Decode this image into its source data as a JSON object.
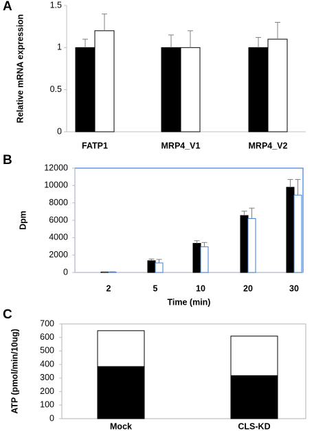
{
  "chart_data": [
    {
      "panel": "A",
      "type": "bar",
      "ylabel": "Relative mRNA expression",
      "xlabel": "",
      "ylim": [
        0,
        1.5
      ],
      "yticks": [
        "0",
        "0.5",
        "1",
        "1.5"
      ],
      "categories": [
        "FATP1",
        "MRP4_V1",
        "MRP4_V2"
      ],
      "series": [
        {
          "color": "#000000",
          "values": [
            1.0,
            1.0,
            1.0
          ],
          "errors": [
            0.1,
            0.15,
            0.12
          ]
        },
        {
          "color": "#ffffff",
          "values": [
            1.2,
            1.0,
            1.1
          ],
          "errors": [
            0.2,
            0.2,
            0.2
          ]
        }
      ],
      "grid": false,
      "legend": "none"
    },
    {
      "panel": "B",
      "type": "bar",
      "ylabel": "Dpm",
      "xlabel": "Time (min)",
      "ylim": [
        0,
        12000
      ],
      "yticks": [
        "0",
        "2000",
        "4000",
        "6000",
        "8000",
        "10000",
        "12000"
      ],
      "categories": [
        "2",
        "5",
        "10",
        "20",
        "30"
      ],
      "series": [
        {
          "color": "#000000",
          "values": [
            50,
            1350,
            3350,
            6550,
            9800
          ],
          "errors": [
            30,
            200,
            300,
            500,
            900
          ]
        },
        {
          "color": "#ffffff",
          "edge": "#3a7fd5",
          "values": [
            50,
            1100,
            2950,
            6200,
            8900
          ],
          "errors": [
            30,
            400,
            500,
            1200,
            1800
          ]
        }
      ],
      "grid": false,
      "legend": "none"
    },
    {
      "panel": "C",
      "type": "bar",
      "stacked": true,
      "ylabel": "ATP (pmol/min/10ug)",
      "xlabel": "",
      "ylim": [
        0,
        700
      ],
      "yticks": [
        "0",
        "100",
        "200",
        "300",
        "400",
        "500",
        "600",
        "700"
      ],
      "categories": [
        "Mock",
        "CLS-KD"
      ],
      "series": [
        {
          "color": "#000000",
          "values": [
            385,
            318
          ]
        },
        {
          "color": "#ffffff",
          "values": [
            265,
            292
          ]
        }
      ],
      "grid": false,
      "legend": "none"
    }
  ]
}
